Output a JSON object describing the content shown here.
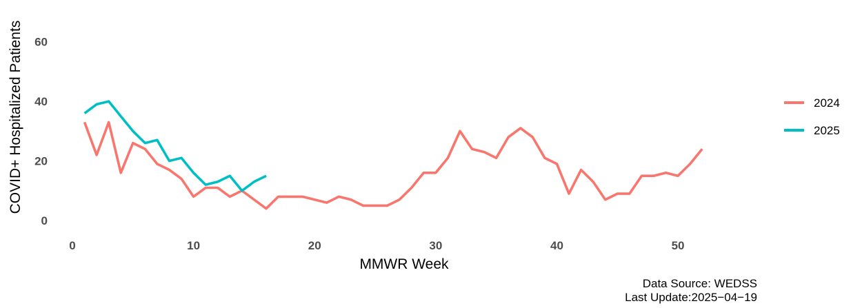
{
  "chart_data": {
    "type": "line",
    "xlabel": "MMWR Week",
    "ylabel": "COVID+ Hospitalized Patients",
    "xlim": [
      0,
      57
    ],
    "ylim": [
      0,
      62
    ],
    "xticks": [
      0,
      10,
      20,
      30,
      40,
      50
    ],
    "yticks": [
      0,
      20,
      40,
      60
    ],
    "grid": false,
    "legend_position": "right",
    "series": [
      {
        "name": "2024",
        "color": "#F8766D",
        "x": [
          1,
          2,
          3,
          4,
          5,
          6,
          7,
          8,
          9,
          10,
          11,
          12,
          13,
          14,
          15,
          16,
          17,
          18,
          19,
          20,
          21,
          22,
          23,
          24,
          25,
          26,
          27,
          28,
          29,
          30,
          31,
          32,
          33,
          34,
          35,
          36,
          37,
          38,
          39,
          40,
          41,
          42,
          43,
          44,
          45,
          46,
          47,
          48,
          49,
          50,
          51,
          52
        ],
        "values": [
          33,
          22,
          33,
          16,
          26,
          24,
          19,
          17,
          14,
          8,
          11,
          11,
          8,
          10,
          7,
          4,
          8,
          8,
          8,
          7,
          6,
          8,
          7,
          5,
          5,
          5,
          7,
          11,
          16,
          16,
          21,
          30,
          24,
          23,
          21,
          28,
          31,
          28,
          21,
          19,
          9,
          17,
          13,
          7,
          9,
          9,
          15,
          15,
          16,
          15,
          19,
          24
        ]
      },
      {
        "name": "2025",
        "color": "#00BFC4",
        "x": [
          1,
          2,
          3,
          4,
          5,
          6,
          7,
          8,
          9,
          10,
          11,
          12,
          13,
          14,
          15,
          16
        ],
        "values": [
          36,
          39,
          40,
          35,
          30,
          26,
          27,
          20,
          21,
          16,
          12,
          13,
          15,
          10,
          13,
          15
        ]
      }
    ]
  },
  "caption": {
    "source": "Data Source: WEDSS",
    "update": "Last Update:2025−04−19"
  }
}
